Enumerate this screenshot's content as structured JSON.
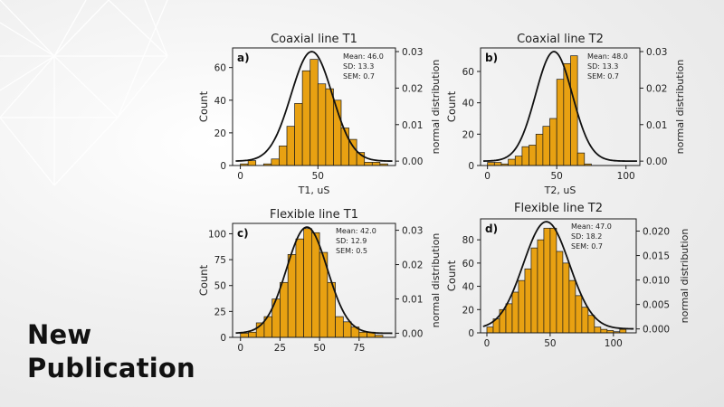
{
  "headline": {
    "line1": "New",
    "line2": "Publication"
  },
  "chart_data": [
    {
      "type": "bar",
      "panel_label": "a)",
      "title": "Coaxial line T1",
      "xlabel": "T1, uS",
      "ylabel": "Count",
      "y2label": "normal distribution",
      "bin_width": 5,
      "bin_centers": [
        2.5,
        7.5,
        12.5,
        17.5,
        22.5,
        27.5,
        32.5,
        37.5,
        42.5,
        47.5,
        52.5,
        57.5,
        62.5,
        67.5,
        72.5,
        77.5,
        82.5,
        87.5,
        92.5
      ],
      "values": [
        1,
        3,
        0,
        1,
        4,
        12,
        24,
        38,
        58,
        65,
        50,
        47,
        40,
        23,
        16,
        8,
        2,
        2,
        1
      ],
      "xlim": [
        -5,
        100
      ],
      "xticks": [
        "0",
        "50"
      ],
      "xtick_values": [
        0,
        50
      ],
      "ylim": [
        0,
        72
      ],
      "yticks": [
        "0",
        "20",
        "40",
        "60"
      ],
      "ytick_values": [
        0,
        20,
        40,
        60
      ],
      "y2lim": [
        -0.0012,
        0.031
      ],
      "y2ticks": [
        "0.00",
        "0.01",
        "0.02",
        "0.03"
      ],
      "y2tick_values": [
        0,
        0.01,
        0.02,
        0.03
      ],
      "stats": [
        "Mean: 46.0",
        "SD: 13.3",
        "SEM: 0.7"
      ],
      "curve": {
        "mean": 46.0,
        "sd": 13.3
      }
    },
    {
      "type": "bar",
      "panel_label": "b)",
      "title": "Coaxial line T2",
      "xlabel": "T2, uS",
      "ylabel": "Count",
      "y2label": "normal distribution",
      "bin_width": 5,
      "bin_centers": [
        2.5,
        7.5,
        12.5,
        17.5,
        22.5,
        27.5,
        32.5,
        37.5,
        42.5,
        47.5,
        52.5,
        57.5,
        62.5,
        67.5,
        72.5
      ],
      "values": [
        2,
        2,
        1,
        4,
        6,
        12,
        13,
        20,
        25,
        30,
        55,
        65,
        70,
        8,
        1
      ],
      "xlim": [
        -5,
        110
      ],
      "xticks": [
        "0",
        "50",
        "100"
      ],
      "xtick_values": [
        0,
        50,
        100
      ],
      "ylim": [
        0,
        75
      ],
      "yticks": [
        "0",
        "20",
        "40",
        "60"
      ],
      "ytick_values": [
        0,
        20,
        40,
        60
      ],
      "y2lim": [
        -0.0012,
        0.031
      ],
      "y2ticks": [
        "0.00",
        "0.01",
        "0.02",
        "0.03"
      ],
      "y2tick_values": [
        0,
        0.01,
        0.02,
        0.03
      ],
      "stats": [
        "Mean: 48.0",
        "SD: 13.3",
        "SEM: 0.7"
      ],
      "curve": {
        "mean": 48.0,
        "sd": 13.3
      }
    },
    {
      "type": "bar",
      "panel_label": "c)",
      "title": "Flexible line T1",
      "xlabel": "",
      "ylabel": "Count",
      "y2label": "normal distribution",
      "bin_width": 5,
      "bin_centers": [
        2.5,
        7.5,
        12.5,
        17.5,
        22.5,
        27.5,
        32.5,
        37.5,
        42.5,
        47.5,
        52.5,
        57.5,
        62.5,
        67.5,
        72.5,
        77.5,
        82.5,
        87.5
      ],
      "values": [
        4,
        5,
        14,
        20,
        37,
        53,
        80,
        95,
        105,
        101,
        82,
        53,
        20,
        15,
        10,
        5,
        5,
        2
      ],
      "xlim": [
        -5,
        98
      ],
      "xticks": [
        "0",
        "25",
        "50",
        "75"
      ],
      "xtick_values": [
        0,
        25,
        50,
        75
      ],
      "ylim": [
        0,
        110
      ],
      "yticks": [
        "0",
        "25",
        "50",
        "75",
        "100"
      ],
      "ytick_values": [
        0,
        25,
        50,
        75,
        100
      ],
      "y2lim": [
        -0.0012,
        0.032
      ],
      "y2ticks": [
        "0.00",
        "0.01",
        "0.02",
        "0.03"
      ],
      "y2tick_values": [
        0,
        0.01,
        0.02,
        0.03
      ],
      "stats": [
        "Mean: 42.0",
        "SD: 12.9",
        "SEM: 0.5"
      ],
      "curve": {
        "mean": 42.0,
        "sd": 12.9
      }
    },
    {
      "type": "bar",
      "panel_label": "d)",
      "title": "Flexible line T2",
      "xlabel": "",
      "ylabel": "Count",
      "y2label": "normal distribution",
      "bin_width": 5,
      "bin_centers": [
        2.5,
        7.5,
        12.5,
        17.5,
        22.5,
        27.5,
        32.5,
        37.5,
        42.5,
        47.5,
        52.5,
        57.5,
        62.5,
        67.5,
        72.5,
        77.5,
        82.5,
        87.5,
        92.5,
        97.5,
        102.5,
        107.5
      ],
      "values": [
        5,
        12,
        20,
        25,
        35,
        45,
        55,
        73,
        80,
        90,
        90,
        70,
        60,
        45,
        32,
        22,
        15,
        5,
        3,
        2,
        1,
        3
      ],
      "xlim": [
        -5,
        118
      ],
      "xticks": [
        "0",
        "50",
        "100"
      ],
      "xtick_values": [
        0,
        50,
        100
      ],
      "ylim": [
        0,
        98
      ],
      "yticks": [
        "0",
        "20",
        "40",
        "60",
        "80"
      ],
      "ytick_values": [
        0,
        20,
        40,
        60,
        80
      ],
      "y2lim": [
        -0.0008,
        0.0225
      ],
      "y2ticks": [
        "0.000",
        "0.005",
        "0.010",
        "0.015",
        "0.020"
      ],
      "y2tick_values": [
        0,
        0.005,
        0.01,
        0.015,
        0.02
      ],
      "stats": [
        "Mean: 47.0",
        "SD: 18.2",
        "SEM: 0.7"
      ],
      "curve": {
        "mean": 47.0,
        "sd": 18.2
      }
    }
  ],
  "colors": {
    "bar_fill": "#e8a112",
    "bar_edge": "#1a1a1a",
    "curve": "#111111",
    "axis": "#1a1a1a",
    "text": "#222222"
  }
}
